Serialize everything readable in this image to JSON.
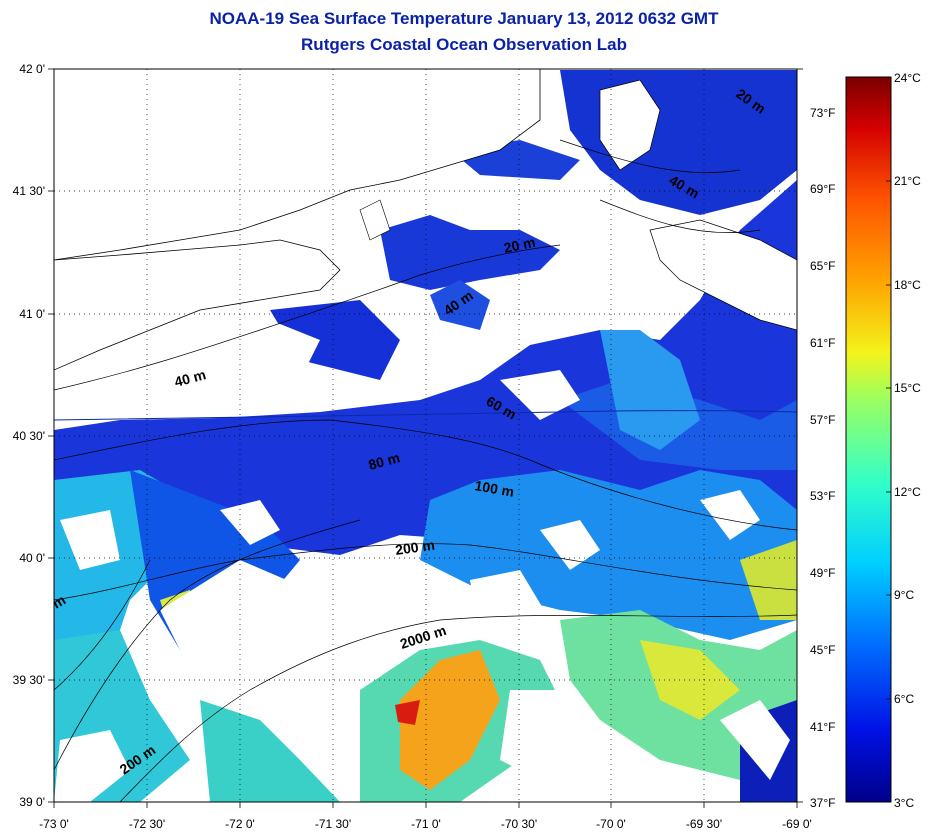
{
  "header": {
    "title": "NOAA-19 Sea Surface Temperature January 13, 2012 0632 GMT",
    "subtitle": "Rutgers Coastal Ocean Observation Lab"
  },
  "map": {
    "lat_ticks": [
      "42 0'",
      "41 30'",
      "41 0'",
      "40 30'",
      "40 0'",
      "39 30'",
      "39 0'"
    ],
    "lon_ticks": [
      "-73 0'",
      "-72 30'",
      "-72 0'",
      "-71 30'",
      "-71 0'",
      "-70 30'",
      "-70 0'",
      "-69 30'",
      "-69 0'"
    ],
    "f_ticks": [
      "73°F",
      "69°F",
      "65°F",
      "61°F",
      "57°F",
      "53°F",
      "49°F",
      "45°F",
      "41°F",
      "37°F"
    ],
    "isobaths": [
      "20 m",
      "40 m",
      "40 m",
      "20 m",
      "40 m",
      "60 m",
      "80 m",
      "100 m",
      "200 m",
      "2000 m",
      "200 m",
      "m"
    ],
    "grid": true
  },
  "colorbar": {
    "c_ticks": [
      "24°C",
      "21°C",
      "18°C",
      "15°C",
      "12°C",
      "9°C",
      "6°C",
      "3°C"
    ],
    "colors": [
      "#7a0000",
      "#d40000",
      "#ff5500",
      "#ffa200",
      "#f3f31a",
      "#a0ff5c",
      "#32ffc8",
      "#00cfff",
      "#0070ff",
      "#0012e6",
      "#00008a"
    ]
  }
}
